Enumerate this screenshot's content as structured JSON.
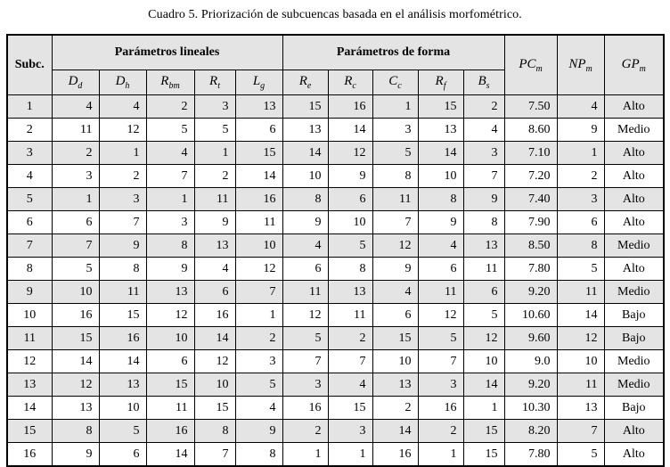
{
  "title": "Cuadro 5. Priorización de subcuencas basada en el análisis morfométrico.",
  "colors": {
    "header_bg": "#e4e4e4",
    "alt_row_bg": "#e4e4e4",
    "border": "#000000",
    "page_bg": "#ffffff"
  },
  "table": {
    "corner_label": "Subc.",
    "groups": [
      {
        "label": "Parámetros lineales"
      },
      {
        "label": "Parámetros de forma"
      }
    ],
    "sub_headers": [
      {
        "base": "D",
        "sub": "d"
      },
      {
        "base": "D",
        "sub": "h"
      },
      {
        "base": "R",
        "sub": "bm"
      },
      {
        "base": "R",
        "sub": "t"
      },
      {
        "base": "L",
        "sub": "g"
      },
      {
        "base": "R",
        "sub": "e"
      },
      {
        "base": "R",
        "sub": "c"
      },
      {
        "base": "C",
        "sub": "c"
      },
      {
        "base": "R",
        "sub": "f"
      },
      {
        "base": "B",
        "sub": "s"
      }
    ],
    "summary_headers": [
      {
        "base": "PC",
        "sub": "m"
      },
      {
        "base": "NP",
        "sub": "m"
      },
      {
        "base": "GP",
        "sub": "m"
      }
    ],
    "rows": [
      {
        "subc": "1",
        "values": [
          "4",
          "4",
          "2",
          "3",
          "13",
          "15",
          "16",
          "1",
          "15",
          "2"
        ],
        "pcm": "7.50",
        "npm": "4",
        "gpm": "Alto"
      },
      {
        "subc": "2",
        "values": [
          "11",
          "12",
          "5",
          "5",
          "6",
          "13",
          "14",
          "3",
          "13",
          "4"
        ],
        "pcm": "8.60",
        "npm": "9",
        "gpm": "Medio"
      },
      {
        "subc": "3",
        "values": [
          "2",
          "1",
          "4",
          "1",
          "15",
          "14",
          "12",
          "5",
          "14",
          "3"
        ],
        "pcm": "7.10",
        "npm": "1",
        "gpm": "Alto"
      },
      {
        "subc": "4",
        "values": [
          "3",
          "2",
          "7",
          "2",
          "14",
          "10",
          "9",
          "8",
          "10",
          "7"
        ],
        "pcm": "7.20",
        "npm": "2",
        "gpm": "Alto"
      },
      {
        "subc": "5",
        "values": [
          "1",
          "3",
          "1",
          "11",
          "16",
          "8",
          "6",
          "11",
          "8",
          "9"
        ],
        "pcm": "7.40",
        "npm": "3",
        "gpm": "Alto"
      },
      {
        "subc": "6",
        "values": [
          "6",
          "7",
          "3",
          "9",
          "11",
          "9",
          "10",
          "7",
          "9",
          "8"
        ],
        "pcm": "7.90",
        "npm": "6",
        "gpm": "Alto"
      },
      {
        "subc": "7",
        "values": [
          "7",
          "9",
          "8",
          "13",
          "10",
          "4",
          "5",
          "12",
          "4",
          "13"
        ],
        "pcm": "8.50",
        "npm": "8",
        "gpm": "Medio"
      },
      {
        "subc": "8",
        "values": [
          "5",
          "8",
          "9",
          "4",
          "12",
          "6",
          "8",
          "9",
          "6",
          "11"
        ],
        "pcm": "7.80",
        "npm": "5",
        "gpm": "Alto"
      },
      {
        "subc": "9",
        "values": [
          "10",
          "11",
          "13",
          "6",
          "7",
          "11",
          "13",
          "4",
          "11",
          "6"
        ],
        "pcm": "9.20",
        "npm": "11",
        "gpm": "Medio"
      },
      {
        "subc": "10",
        "values": [
          "16",
          "15",
          "12",
          "16",
          "1",
          "12",
          "11",
          "6",
          "12",
          "5"
        ],
        "pcm": "10.60",
        "npm": "14",
        "gpm": "Bajo"
      },
      {
        "subc": "11",
        "values": [
          "15",
          "16",
          "10",
          "14",
          "2",
          "5",
          "2",
          "15",
          "5",
          "12"
        ],
        "pcm": "9.60",
        "npm": "12",
        "gpm": "Bajo"
      },
      {
        "subc": "12",
        "values": [
          "14",
          "14",
          "6",
          "12",
          "3",
          "7",
          "7",
          "10",
          "7",
          "10"
        ],
        "pcm": "9.0",
        "npm": "10",
        "gpm": "Medio"
      },
      {
        "subc": "13",
        "values": [
          "12",
          "13",
          "15",
          "10",
          "5",
          "3",
          "4",
          "13",
          "3",
          "14"
        ],
        "pcm": "9.20",
        "npm": "11",
        "gpm": "Medio"
      },
      {
        "subc": "14",
        "values": [
          "13",
          "10",
          "11",
          "15",
          "4",
          "16",
          "15",
          "2",
          "16",
          "1"
        ],
        "pcm": "10.30",
        "npm": "13",
        "gpm": "Bajo"
      },
      {
        "subc": "15",
        "values": [
          "8",
          "5",
          "16",
          "8",
          "9",
          "2",
          "3",
          "14",
          "2",
          "15"
        ],
        "pcm": "8.20",
        "npm": "7",
        "gpm": "Alto"
      },
      {
        "subc": "16",
        "values": [
          "9",
          "6",
          "14",
          "7",
          "8",
          "1",
          "1",
          "16",
          "1",
          "15"
        ],
        "pcm": "7.80",
        "npm": "5",
        "gpm": "Alto"
      }
    ]
  }
}
